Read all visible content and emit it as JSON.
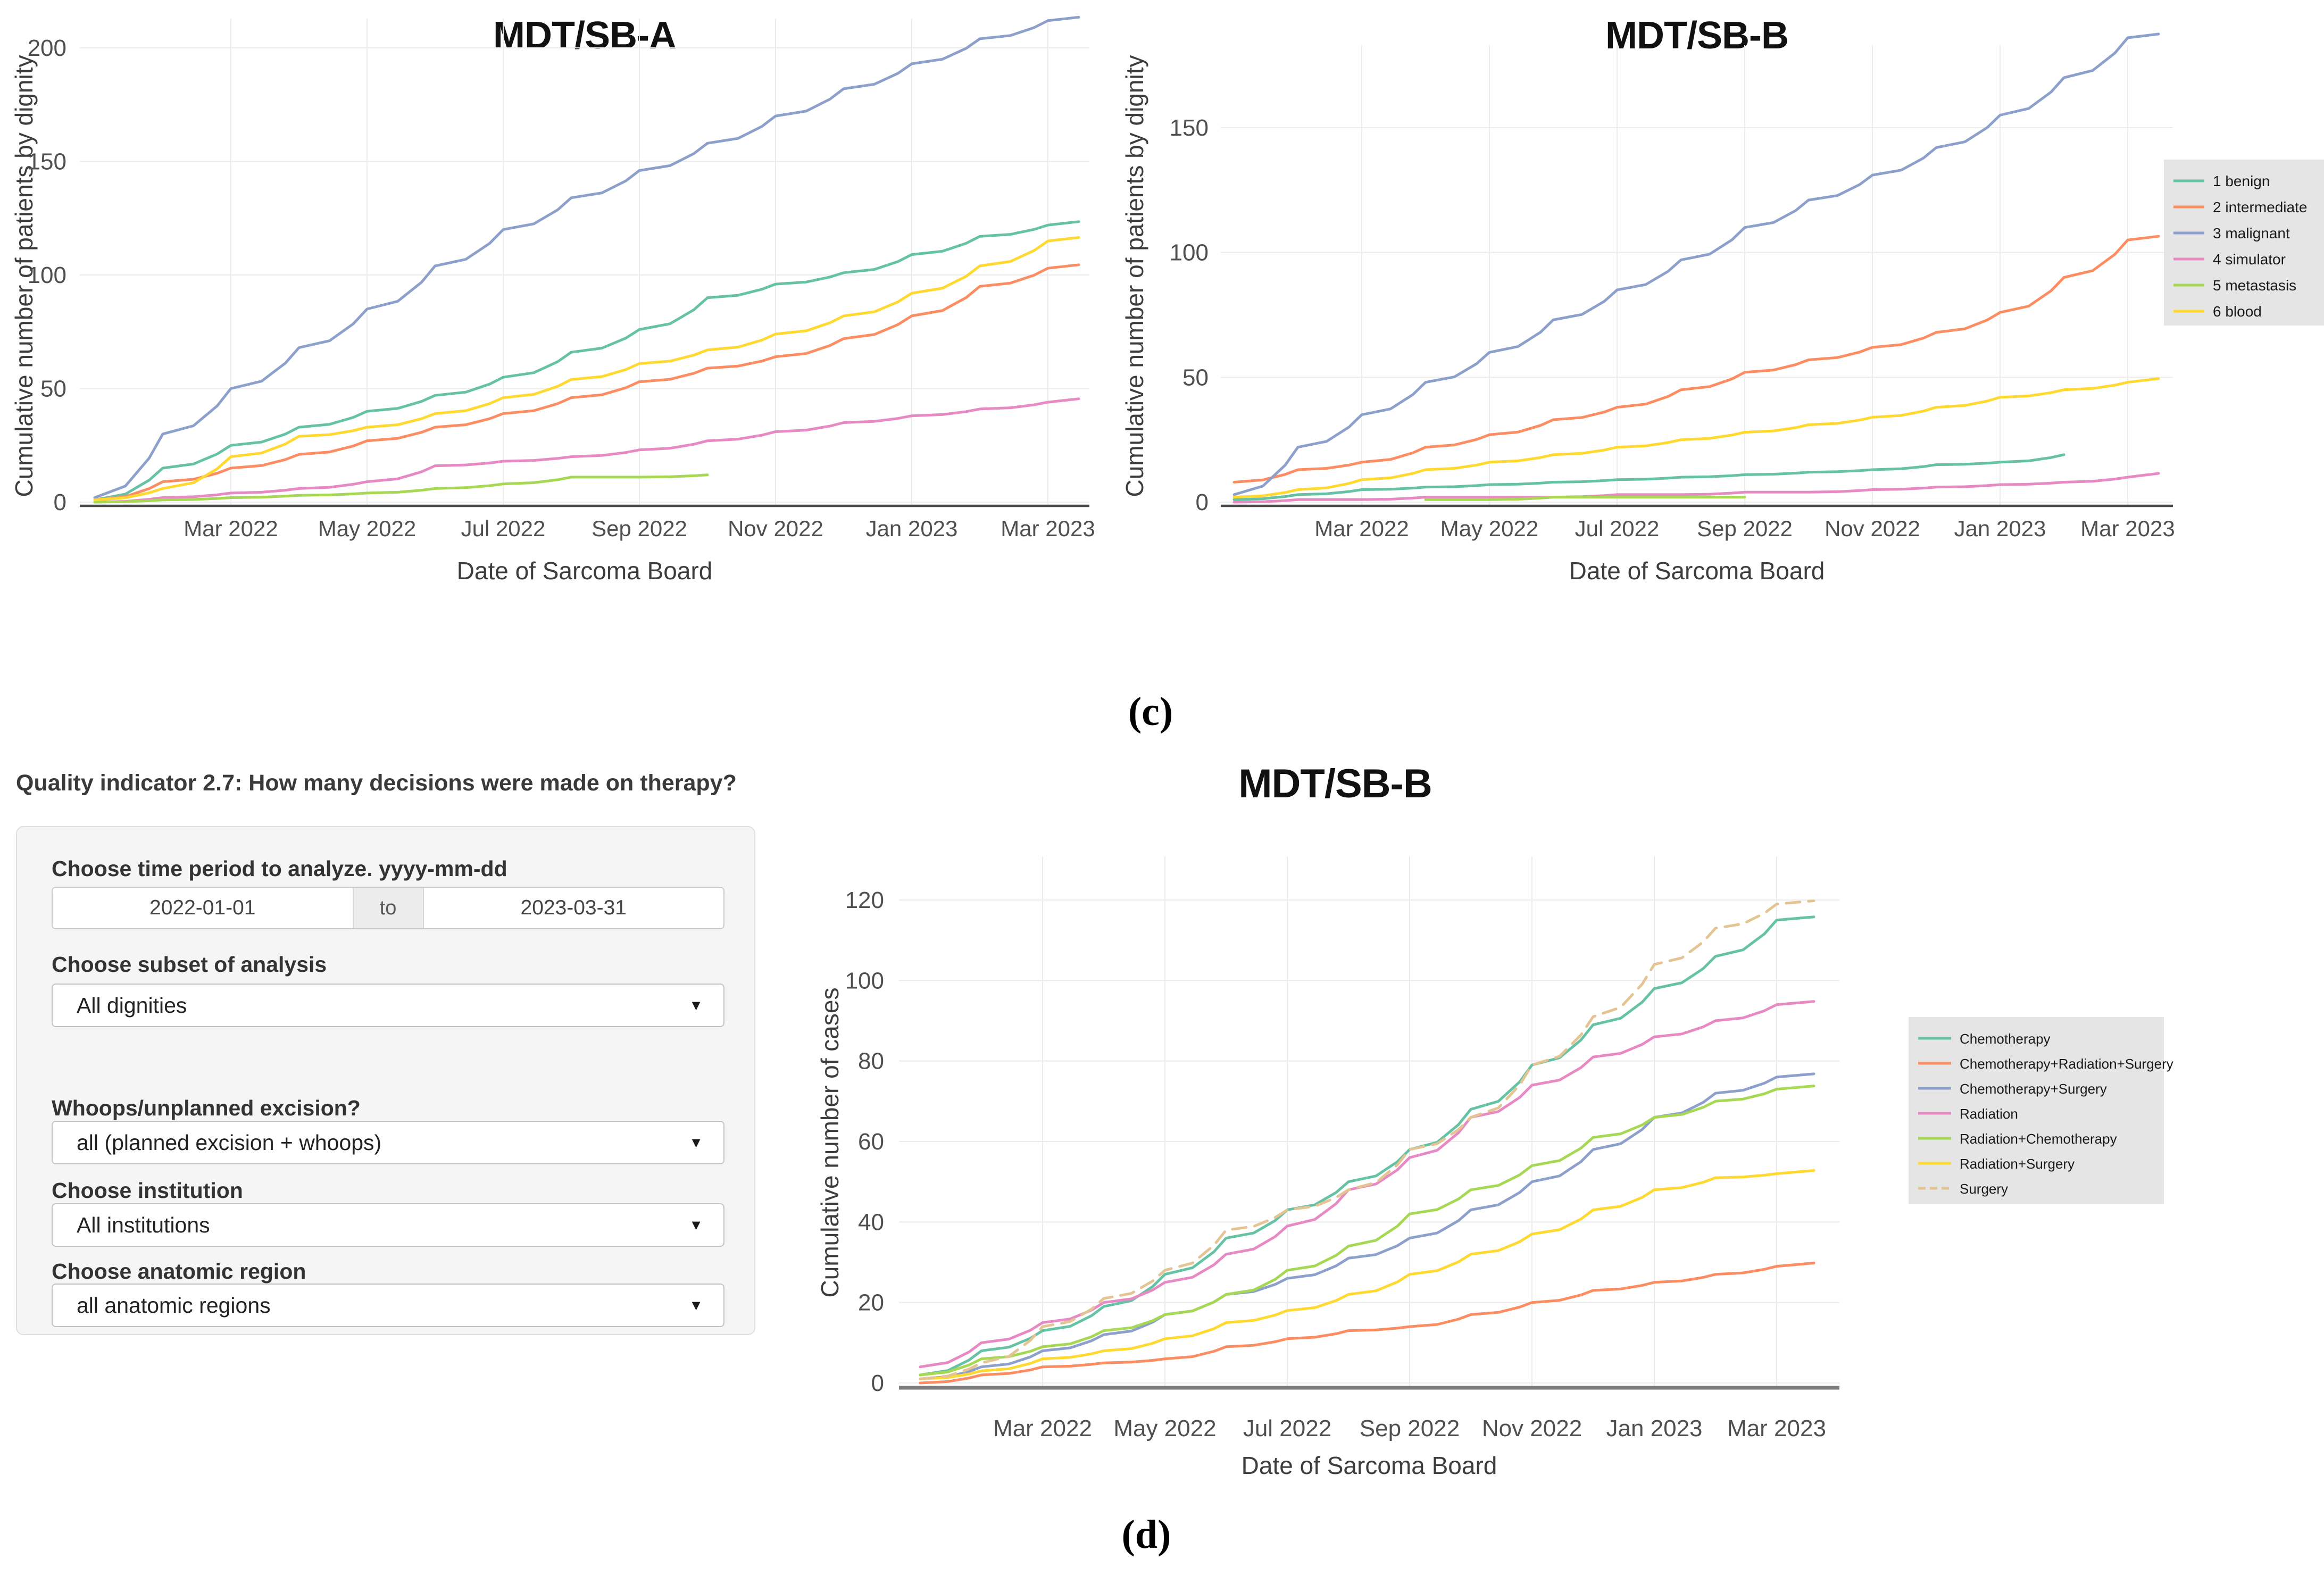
{
  "captions": {
    "c": "(c)",
    "d": "(d)"
  },
  "icons": {
    "dropdown_caret": "▼"
  },
  "colors": {
    "benign": "#66c2a5",
    "intermediate": "#fc8d62",
    "malignant": "#8da0cb",
    "simulator": "#e78ac3",
    "metastasis": "#a6d854",
    "blood": "#ffd92f",
    "surgery": "#e5c494",
    "legend_bg": "#e5e5e5",
    "grid": "#ececec",
    "axis_top": "#4a4a4a",
    "axis_bottom": "#7d7d7d",
    "tick_text": "#4f4f4f"
  },
  "form": {
    "heading": "Quality indicator 2.7: How many decisions were made on therapy?",
    "time_period": {
      "label": "Choose time period to analyze. yyyy-mm-dd",
      "from": "2022-01-01",
      "separator": "to",
      "to": "2023-03-31"
    },
    "subset": {
      "label": "Choose subset of analysis",
      "value": "All dignities"
    },
    "whoops": {
      "label": "Whoops/unplanned excision?",
      "value": "all (planned excision + whoops)"
    },
    "institution": {
      "label": "Choose institution",
      "value": "All institutions"
    },
    "anatomic_region": {
      "label": "Choose anatomic region",
      "value": "all anatomic regions"
    }
  },
  "chart_data": [
    {
      "id": "mdt-sb-a-dignity",
      "type": "line",
      "title": "MDT/SB-A",
      "xlabel": "Date of Sarcoma Board",
      "ylabel": "Cumulative number of patients by dignity",
      "x": [
        "Jan 2022",
        "Feb 2022",
        "Mar 2022",
        "Apr 2022",
        "May 2022",
        "Jun 2022",
        "Jul 2022",
        "Aug 2022",
        "Sep 2022",
        "Oct 2022",
        "Nov 2022",
        "Dec 2022",
        "Jan 2023",
        "Feb 2023",
        "Mar 2023"
      ],
      "x_ticks": [
        "Mar 2022",
        "May 2022",
        "Jul 2022",
        "Sep 2022",
        "Nov 2022",
        "Jan 2023",
        "Mar 2023"
      ],
      "y_ticks": [
        0,
        50,
        100,
        150,
        200
      ],
      "ylim": [
        0,
        215
      ],
      "grid": true,
      "legend_position": "none",
      "series": [
        {
          "name": "1 benign",
          "color": "#66c2a5",
          "values": [
            1,
            15,
            25,
            33,
            40,
            47,
            55,
            66,
            76,
            90,
            96,
            101,
            109,
            117,
            122
          ]
        },
        {
          "name": "2 intermediate",
          "color": "#fc8d62",
          "values": [
            1,
            9,
            15,
            21,
            27,
            33,
            39,
            46,
            53,
            59,
            64,
            72,
            82,
            95,
            103
          ]
        },
        {
          "name": "3 malignant",
          "color": "#8da0cb",
          "values": [
            2,
            30,
            50,
            68,
            85,
            104,
            120,
            134,
            146,
            158,
            170,
            182,
            193,
            204,
            212
          ]
        },
        {
          "name": "4 simulator",
          "color": "#e78ac3",
          "values": [
            0,
            2,
            4,
            6,
            9,
            16,
            18,
            20,
            23,
            27,
            31,
            35,
            38,
            41,
            44
          ]
        },
        {
          "name": "5 metastasis",
          "color": "#a6d854",
          "values": [
            0,
            1,
            2,
            3,
            4,
            6,
            8,
            11,
            11,
            12,
            null,
            null,
            null,
            null,
            null
          ]
        },
        {
          "name": "6 blood",
          "color": "#ffd92f",
          "values": [
            1,
            6,
            20,
            29,
            33,
            39,
            46,
            54,
            61,
            67,
            74,
            82,
            92,
            104,
            115
          ]
        }
      ]
    },
    {
      "id": "mdt-sb-b-dignity",
      "type": "line",
      "title": "MDT/SB-B",
      "xlabel": "Date of Sarcoma Board",
      "ylabel": "Cumulative number of patients by dignity",
      "x": [
        "Jan 2022",
        "Feb 2022",
        "Mar 2022",
        "Apr 2022",
        "May 2022",
        "Jun 2022",
        "Jul 2022",
        "Aug 2022",
        "Sep 2022",
        "Oct 2022",
        "Nov 2022",
        "Dec 2022",
        "Jan 2023",
        "Feb 2023",
        "Mar 2023"
      ],
      "x_ticks": [
        "Mar 2022",
        "May 2022",
        "Jul 2022",
        "Sep 2022",
        "Nov 2022",
        "Jan 2023",
        "Mar 2023"
      ],
      "y_ticks": [
        0,
        50,
        100,
        150
      ],
      "ylim": [
        0,
        190
      ],
      "grid": true,
      "legend_position": "right",
      "series": [
        {
          "name": "1 benign",
          "color": "#66c2a5",
          "values": [
            1,
            3,
            5,
            6,
            7,
            8,
            9,
            10,
            11,
            12,
            13,
            15,
            16,
            19,
            null
          ]
        },
        {
          "name": "2 intermediate",
          "color": "#fc8d62",
          "values": [
            8,
            13,
            16,
            22,
            27,
            33,
            38,
            45,
            52,
            57,
            62,
            68,
            76,
            90,
            105
          ]
        },
        {
          "name": "3 malignant",
          "color": "#8da0cb",
          "values": [
            3,
            22,
            35,
            48,
            60,
            73,
            85,
            97,
            110,
            121,
            131,
            142,
            155,
            170,
            186
          ]
        },
        {
          "name": "4 simulator",
          "color": "#e78ac3",
          "values": [
            0,
            1,
            1,
            2,
            2,
            2,
            3,
            3,
            4,
            4,
            5,
            6,
            7,
            8,
            10
          ]
        },
        {
          "name": "5 metastasis",
          "color": "#a6d854",
          "values": [
            null,
            null,
            null,
            1,
            1,
            2,
            2,
            2,
            2,
            null,
            null,
            null,
            null,
            null,
            null
          ]
        },
        {
          "name": "6 blood",
          "color": "#ffd92f",
          "values": [
            2,
            5,
            9,
            13,
            16,
            19,
            22,
            25,
            28,
            31,
            34,
            38,
            42,
            45,
            48
          ]
        }
      ]
    },
    {
      "id": "mdt-sb-b-therapy",
      "type": "line",
      "title": "MDT/SB-B",
      "xlabel": "Date of Sarcoma Board",
      "ylabel": "Cumulative number of cases",
      "x": [
        "Jan 2022",
        "Feb 2022",
        "Mar 2022",
        "Apr 2022",
        "May 2022",
        "Jun 2022",
        "Jul 2022",
        "Aug 2022",
        "Sep 2022",
        "Oct 2022",
        "Nov 2022",
        "Dec 2022",
        "Jan 2023",
        "Feb 2023",
        "Mar 2023"
      ],
      "x_ticks": [
        "Mar 2022",
        "May 2022",
        "Jul 2022",
        "Sep 2022",
        "Nov 2022",
        "Jan 2023",
        "Mar 2023"
      ],
      "y_ticks": [
        0,
        20,
        40,
        60,
        80,
        100,
        120
      ],
      "ylim": [
        0,
        125
      ],
      "grid": true,
      "legend_position": "right",
      "series": [
        {
          "name": "Chemotherapy",
          "color": "#66c2a5",
          "values": [
            2,
            8,
            13,
            19,
            27,
            36,
            43,
            50,
            58,
            68,
            79,
            89,
            98,
            106,
            115
          ]
        },
        {
          "name": "Chemotherapy+Radiation+Surgery",
          "color": "#fc8d62",
          "values": [
            0,
            2,
            4,
            5,
            6,
            9,
            11,
            13,
            14,
            17,
            20,
            23,
            25,
            27,
            29
          ]
        },
        {
          "name": "Chemotherapy+Surgery",
          "color": "#8da0cb",
          "values": [
            1,
            4,
            8,
            12,
            17,
            22,
            26,
            31,
            36,
            43,
            50,
            58,
            66,
            72,
            76
          ]
        },
        {
          "name": "Radiation",
          "color": "#e78ac3",
          "values": [
            4,
            10,
            15,
            20,
            25,
            32,
            39,
            48,
            56,
            66,
            74,
            81,
            86,
            90,
            94
          ]
        },
        {
          "name": "Radiation+Chemotherapy",
          "color": "#a6d854",
          "values": [
            2,
            6,
            9,
            13,
            17,
            22,
            28,
            34,
            42,
            48,
            54,
            61,
            66,
            70,
            73
          ]
        },
        {
          "name": "Radiation+Surgery",
          "color": "#ffd92f",
          "values": [
            1,
            3,
            6,
            8,
            11,
            15,
            18,
            22,
            27,
            32,
            37,
            43,
            48,
            51,
            52
          ]
        },
        {
          "name": "Surgery",
          "color": "#e5c494",
          "dashed": true,
          "values": [
            1,
            5,
            14,
            21,
            28,
            38,
            43,
            48,
            58,
            66,
            79,
            91,
            104,
            113,
            119
          ]
        }
      ]
    }
  ]
}
